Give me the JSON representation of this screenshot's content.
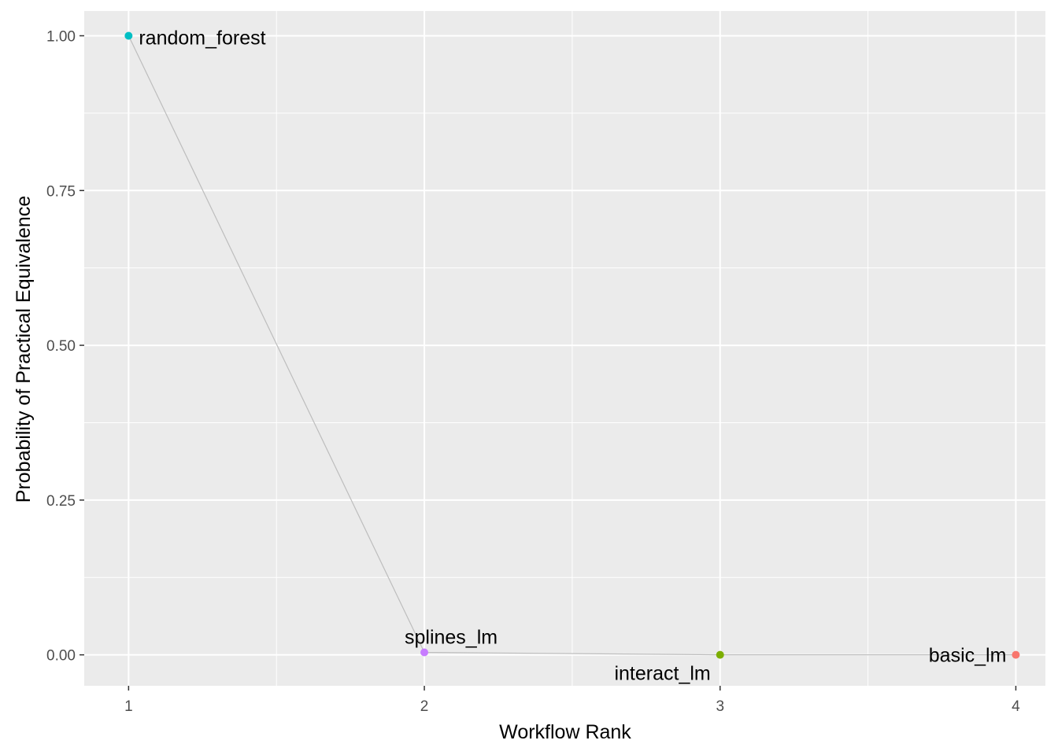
{
  "chart_data": {
    "type": "line",
    "title": "",
    "xlabel": "Workflow Rank",
    "ylabel": "Probability of Practical Equivalence",
    "xlim": [
      0.85,
      4.1
    ],
    "ylim": [
      -0.05,
      1.04
    ],
    "x_ticks": [
      1,
      2,
      3,
      4
    ],
    "x_tick_labels": [
      "1",
      "2",
      "3",
      "4"
    ],
    "y_ticks": [
      0,
      0.25,
      0.5,
      0.75,
      1
    ],
    "y_tick_labels": [
      "0.00",
      "0.25",
      "0.50",
      "0.75",
      "1.00"
    ],
    "grid": true,
    "legend": "none",
    "line_color": "#BDBDBD",
    "panel_background": "#EBEBEB",
    "points": [
      {
        "rank": 1,
        "probability": 1.0,
        "label": "random_forest",
        "color": "#00BFC4",
        "label_position": "right"
      },
      {
        "rank": 2,
        "probability": 0.004,
        "label": "splines_lm",
        "color": "#C77CFF",
        "label_position": "above"
      },
      {
        "rank": 3,
        "probability": 0.0,
        "label": "interact_lm",
        "color": "#7CAE00",
        "label_position": "below-left"
      },
      {
        "rank": 4,
        "probability": 0.0,
        "label": "basic_lm",
        "color": "#F8766D",
        "label_position": "left"
      }
    ]
  }
}
